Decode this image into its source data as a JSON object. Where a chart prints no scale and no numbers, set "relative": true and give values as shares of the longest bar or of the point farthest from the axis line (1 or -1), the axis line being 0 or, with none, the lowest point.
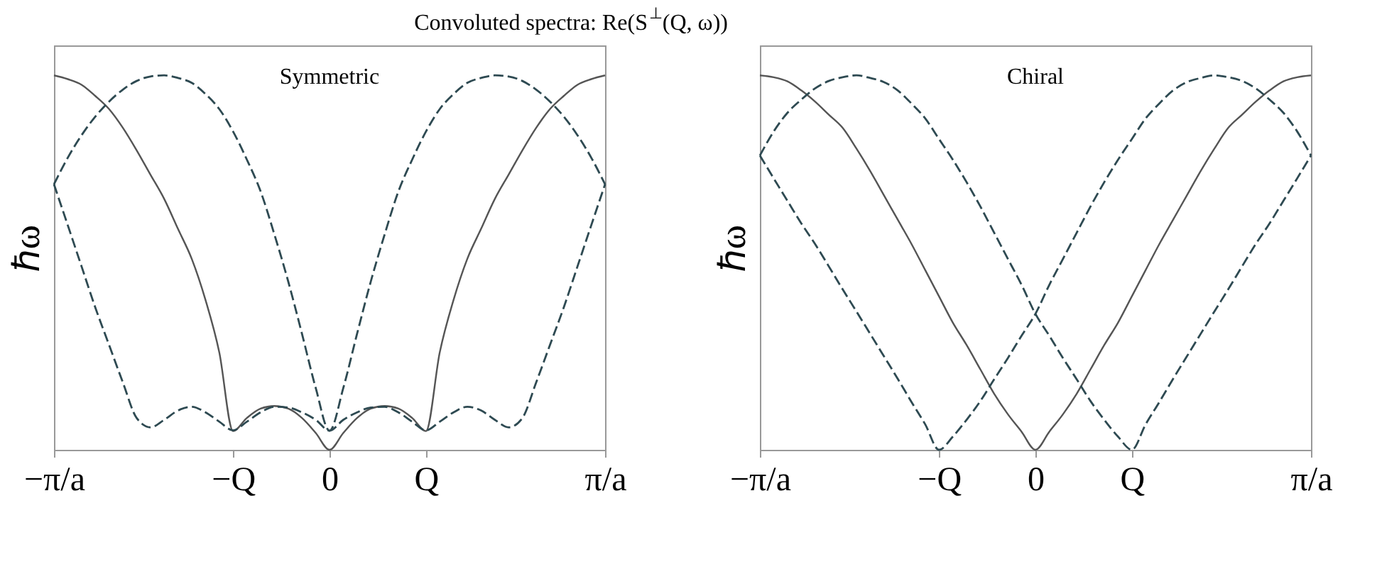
{
  "chart_data": [
    {
      "type": "line",
      "title": "Convoluted spectra: Re(S$^{⊥}$(Q, ω))",
      "ylabel": "ℏω",
      "relative": true,
      "annotations": [
        "Symmetric"
      ],
      "categories": [
        "−π/a",
        null,
        null,
        null,
        null,
        null,
        null,
        null,
        null,
        null,
        null,
        null,
        null,
        "−Q",
        null,
        null,
        null,
        null,
        null,
        null,
        "0",
        null,
        null,
        null,
        null,
        null,
        null,
        "Q",
        null,
        null,
        null,
        null,
        null,
        null,
        null,
        null,
        null,
        null,
        null,
        null,
        "π/a"
      ],
      "series": [
        {
          "color": "#555555",
          "line_style": "solid",
          "values": [
            1,
            0.99,
            0.975,
            0.945,
            0.91,
            0.86,
            0.8,
            0.735,
            0.67,
            0.59,
            0.51,
            0.4,
            0.26,
            0.05,
            0.085,
            0.11,
            0.117,
            0.11,
            0.085,
            0.045,
            0,
            0.045,
            0.085,
            0.11,
            0.117,
            0.11,
            0.085,
            0.05,
            0.26,
            0.4,
            0.51,
            0.59,
            0.67,
            0.735,
            0.8,
            0.86,
            0.91,
            0.945,
            0.975,
            0.99,
            1
          ]
        },
        {
          "color": "#2e4a52",
          "line_style": "dashed",
          "values": [
            0.709,
            0.78,
            0.84,
            0.89,
            0.93,
            0.962,
            0.985,
            0.997,
            1,
            0.993,
            0.98,
            0.95,
            0.91,
            0.85,
            0.775,
            0.69,
            0.575,
            0.45,
            0.31,
            0.165,
            0.051,
            0.165,
            0.31,
            0.45,
            0.575,
            0.69,
            0.775,
            0.85,
            0.91,
            0.95,
            0.98,
            0.993,
            1,
            0.997,
            0.985,
            0.962,
            0.93,
            0.89,
            0.84,
            0.78,
            0.709
          ]
        },
        {
          "color": "#2e4a52",
          "line_style": "dashed",
          "values": [
            0.709,
            0.6,
            0.49,
            0.38,
            0.28,
            0.18,
            0.085,
            0.06,
            0.08,
            0.105,
            0.115,
            0.1,
            0.075,
            0.052,
            0.075,
            0.1,
            0.115,
            0.113,
            0.1,
            0.08,
            0.051,
            0.08,
            0.1,
            0.113,
            0.115,
            0.1,
            0.075,
            0.052,
            0.075,
            0.1,
            0.115,
            0.105,
            0.08,
            0.06,
            0.085,
            0.18,
            0.28,
            0.38,
            0.49,
            0.6,
            0.709
          ]
        }
      ]
    },
    {
      "type": "line",
      "ylabel": "ℏω",
      "relative": true,
      "annotations": [
        "Chiral"
      ],
      "categories": [
        "−π/a",
        null,
        null,
        null,
        null,
        null,
        null,
        null,
        null,
        null,
        null,
        null,
        null,
        "−Q",
        null,
        null,
        null,
        null,
        null,
        null,
        "0",
        null,
        null,
        null,
        null,
        null,
        null,
        "Q",
        null,
        null,
        null,
        null,
        null,
        null,
        null,
        null,
        null,
        null,
        null,
        null,
        "π/a"
      ],
      "series": [
        {
          "color": "#555555",
          "line_style": "solid",
          "values": [
            1,
            0.995,
            0.984,
            0.96,
            0.93,
            0.895,
            0.86,
            0.805,
            0.745,
            0.68,
            0.615,
            0.55,
            0.48,
            0.41,
            0.34,
            0.28,
            0.215,
            0.15,
            0.095,
            0.048,
            0,
            0.048,
            0.095,
            0.15,
            0.215,
            0.28,
            0.34,
            0.41,
            0.48,
            0.55,
            0.615,
            0.68,
            0.745,
            0.805,
            0.86,
            0.895,
            0.93,
            0.96,
            0.984,
            0.995,
            1
          ]
        },
        {
          "color": "#2e4a52",
          "line_style": "dashed",
          "values": [
            0.786,
            0.85,
            0.9,
            0.935,
            0.965,
            0.985,
            0.995,
            1,
            0.993,
            0.982,
            0.96,
            0.925,
            0.885,
            0.83,
            0.775,
            0.715,
            0.65,
            0.58,
            0.51,
            0.44,
            0.363,
            0.305,
            0.245,
            0.188,
            0.13,
            0.08,
            0.035,
            0,
            0.068,
            0.128,
            0.19,
            0.25,
            0.31,
            0.37,
            0.429,
            0.49,
            0.55,
            0.605,
            0.665,
            0.725,
            0.786
          ]
        },
        {
          "color": "#2e4a52",
          "line_style": "dashed",
          "values": [
            0.786,
            0.725,
            0.665,
            0.605,
            0.55,
            0.49,
            0.429,
            0.37,
            0.31,
            0.25,
            0.19,
            0.128,
            0.068,
            0,
            0.035,
            0.08,
            0.13,
            0.188,
            0.245,
            0.305,
            0.363,
            0.44,
            0.51,
            0.58,
            0.65,
            0.715,
            0.775,
            0.83,
            0.885,
            0.925,
            0.96,
            0.982,
            0.993,
            1,
            0.995,
            0.985,
            0.965,
            0.935,
            0.9,
            0.85,
            0.786
          ]
        }
      ]
    }
  ]
}
